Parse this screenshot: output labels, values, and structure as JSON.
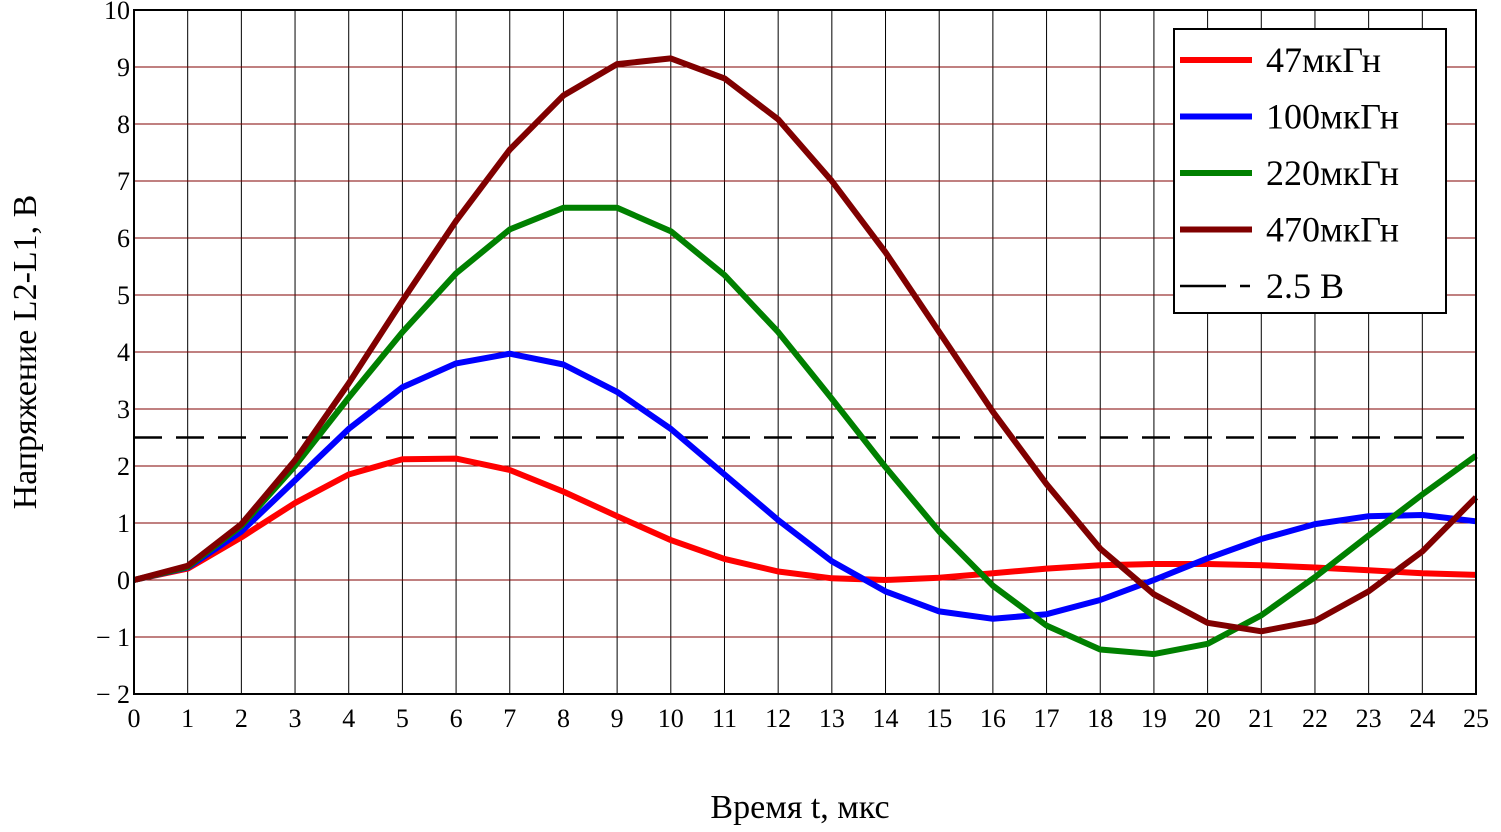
{
  "chart_data": {
    "type": "line",
    "xlabel": "Время t, мкс",
    "ylabel": "Напряжение L2-L1, В",
    "xlim": [
      0,
      25
    ],
    "ylim": [
      -2,
      10
    ],
    "grid": true,
    "legend_position": "top-right",
    "x_ticks": [
      "0",
      "1",
      "2",
      "3",
      "4",
      "5",
      "6",
      "7",
      "8",
      "9",
      "10",
      "11",
      "12",
      "13",
      "14",
      "15",
      "16",
      "17",
      "18",
      "19",
      "20",
      "21",
      "22",
      "23",
      "24",
      "25"
    ],
    "y_ticks": [
      "10",
      "9",
      "8",
      "7",
      "6",
      "5",
      "4",
      "3",
      "2",
      "1",
      "0",
      "− 1",
      "− 2"
    ],
    "y_tick_values": [
      10,
      9,
      8,
      7,
      6,
      5,
      4,
      3,
      2,
      1,
      0,
      -1,
      -2
    ],
    "x": [
      0,
      1,
      2,
      3,
      4,
      5,
      6,
      7,
      8,
      9,
      10,
      11,
      12,
      13,
      14,
      15,
      16,
      17,
      18,
      19,
      20,
      21,
      22,
      23,
      24,
      25
    ],
    "series": [
      {
        "name": "47мкГн",
        "color": "#ff0000",
        "values": [
          0,
          0.2,
          0.75,
          1.35,
          1.85,
          2.12,
          2.13,
          1.93,
          1.55,
          1.12,
          0.7,
          0.37,
          0.15,
          0.03,
          0.0,
          0.04,
          0.12,
          0.2,
          0.26,
          0.28,
          0.28,
          0.26,
          0.22,
          0.17,
          0.12,
          0.09
        ]
      },
      {
        "name": "100мкГн",
        "color": "#0000ff",
        "values": [
          0,
          0.22,
          0.85,
          1.75,
          2.65,
          3.38,
          3.8,
          3.97,
          3.78,
          3.3,
          2.65,
          1.85,
          1.05,
          0.33,
          -0.2,
          -0.55,
          -0.68,
          -0.6,
          -0.35,
          0.0,
          0.38,
          0.72,
          0.98,
          1.12,
          1.14,
          1.03
        ]
      },
      {
        "name": "220мкГн",
        "color": "#008000",
        "values": [
          0,
          0.23,
          0.95,
          2.0,
          3.2,
          4.35,
          5.38,
          6.15,
          6.53,
          6.53,
          6.12,
          5.35,
          4.35,
          3.18,
          1.98,
          0.85,
          -0.1,
          -0.8,
          -1.22,
          -1.3,
          -1.12,
          -0.62,
          0.05,
          0.78,
          1.5,
          2.18
        ]
      },
      {
        "name": "470мкГн",
        "color": "#800000",
        "values": [
          0,
          0.25,
          0.98,
          2.1,
          3.45,
          4.9,
          6.3,
          7.55,
          8.5,
          9.05,
          9.15,
          8.8,
          8.08,
          7.0,
          5.75,
          4.35,
          2.95,
          1.68,
          0.55,
          -0.25,
          -0.75,
          -0.9,
          -0.72,
          -0.2,
          0.5,
          1.45
        ]
      },
      {
        "name": "2.5 В",
        "color": "#000000",
        "dashed": true,
        "values": [
          2.5,
          2.5,
          2.5,
          2.5,
          2.5,
          2.5,
          2.5,
          2.5,
          2.5,
          2.5,
          2.5,
          2.5,
          2.5,
          2.5,
          2.5,
          2.5,
          2.5,
          2.5,
          2.5,
          2.5,
          2.5,
          2.5,
          2.5,
          2.5,
          2.5,
          2.5
        ]
      }
    ]
  }
}
